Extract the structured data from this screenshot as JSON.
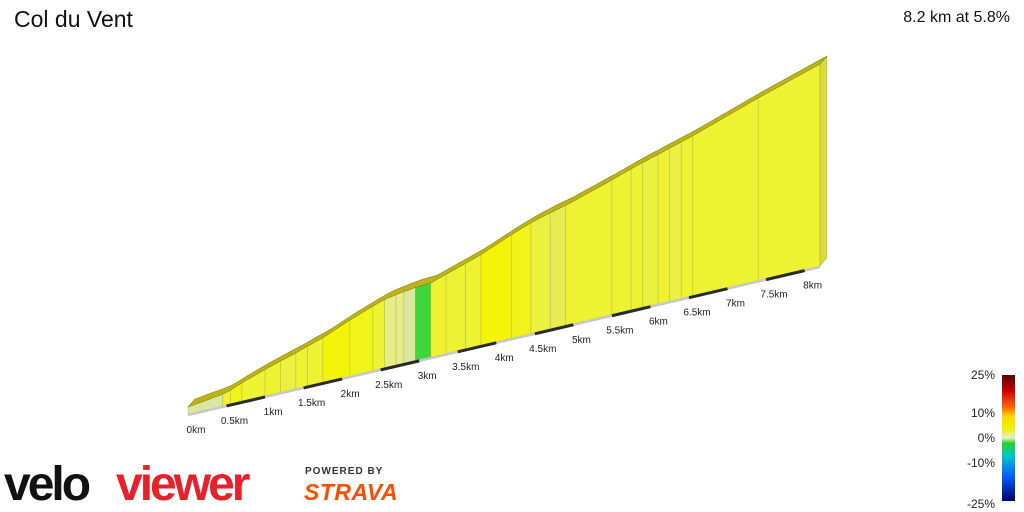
{
  "header": {
    "title": "Col du Vent",
    "summary": "8.2 km at 5.8%"
  },
  "chart_data": {
    "type": "area",
    "title": "Col du Vent",
    "xlabel": "",
    "ylabel": "",
    "x_unit": "km",
    "tick_labels": [
      "0km",
      "0.5km",
      "1km",
      "1.5km",
      "2km",
      "2.5km",
      "3km",
      "3.5km",
      "4km",
      "4.5km",
      "5km",
      "5.5km",
      "6km",
      "6.5km",
      "7km",
      "7.5km",
      "8km"
    ],
    "tick_values": [
      0,
      0.5,
      1,
      1.5,
      2,
      2.5,
      3,
      3.5,
      4,
      4.5,
      5,
      5.5,
      6,
      6.5,
      7,
      7.5,
      8
    ],
    "total_distance_km": 8.2,
    "average_gradient_pct": 5.8,
    "segments": [
      {
        "start": 0.0,
        "end": 0.45,
        "gradient": 2.5
      },
      {
        "start": 0.45,
        "end": 0.55,
        "gradient": 6.0
      },
      {
        "start": 0.55,
        "end": 0.7,
        "gradient": 7.5
      },
      {
        "start": 0.7,
        "end": 1.0,
        "gradient": 6.5
      },
      {
        "start": 1.0,
        "end": 1.2,
        "gradient": 6.0
      },
      {
        "start": 1.2,
        "end": 1.4,
        "gradient": 5.5
      },
      {
        "start": 1.4,
        "end": 1.55,
        "gradient": 6.5
      },
      {
        "start": 1.55,
        "end": 1.75,
        "gradient": 6.0
      },
      {
        "start": 1.75,
        "end": 2.1,
        "gradient": 8.0
      },
      {
        "start": 2.1,
        "end": 2.4,
        "gradient": 7.0
      },
      {
        "start": 2.4,
        "end": 2.55,
        "gradient": 6.5
      },
      {
        "start": 2.55,
        "end": 2.7,
        "gradient": 3.5
      },
      {
        "start": 2.7,
        "end": 2.8,
        "gradient": 3.0
      },
      {
        "start": 2.8,
        "end": 2.95,
        "gradient": 2.5
      },
      {
        "start": 2.95,
        "end": 3.15,
        "gradient": 1.0
      },
      {
        "start": 3.15,
        "end": 3.35,
        "gradient": 6.5
      },
      {
        "start": 3.35,
        "end": 3.6,
        "gradient": 6.0
      },
      {
        "start": 3.6,
        "end": 3.8,
        "gradient": 6.5
      },
      {
        "start": 3.8,
        "end": 4.2,
        "gradient": 8.0
      },
      {
        "start": 4.2,
        "end": 4.45,
        "gradient": 7.0
      },
      {
        "start": 4.45,
        "end": 4.7,
        "gradient": 5.5
      },
      {
        "start": 4.7,
        "end": 4.9,
        "gradient": 4.5
      },
      {
        "start": 4.9,
        "end": 5.5,
        "gradient": 6.0
      },
      {
        "start": 5.5,
        "end": 5.75,
        "gradient": 6.5
      },
      {
        "start": 5.75,
        "end": 5.9,
        "gradient": 6.0
      },
      {
        "start": 5.9,
        "end": 6.1,
        "gradient": 5.5
      },
      {
        "start": 6.1,
        "end": 6.25,
        "gradient": 6.0
      },
      {
        "start": 6.25,
        "end": 6.4,
        "gradient": 5.5
      },
      {
        "start": 6.4,
        "end": 6.55,
        "gradient": 6.0
      },
      {
        "start": 6.55,
        "end": 7.4,
        "gradient": 6.5
      },
      {
        "start": 7.4,
        "end": 8.2,
        "gradient": 6.0
      }
    ],
    "gradient_scale": {
      "labels": [
        "25%",
        "10%",
        "0%",
        "-10%",
        "-25%"
      ],
      "values": [
        25,
        10,
        0,
        -10,
        -25
      ]
    }
  },
  "branding": {
    "logo_velo": "velo",
    "logo_viewer": "viewer",
    "powered_by": "POWERED BY",
    "strava": "STRAVA"
  },
  "colors": {
    "brand_red": "#e8202a",
    "brand_dark": "#111111",
    "strava_orange": "#fc4c02"
  }
}
